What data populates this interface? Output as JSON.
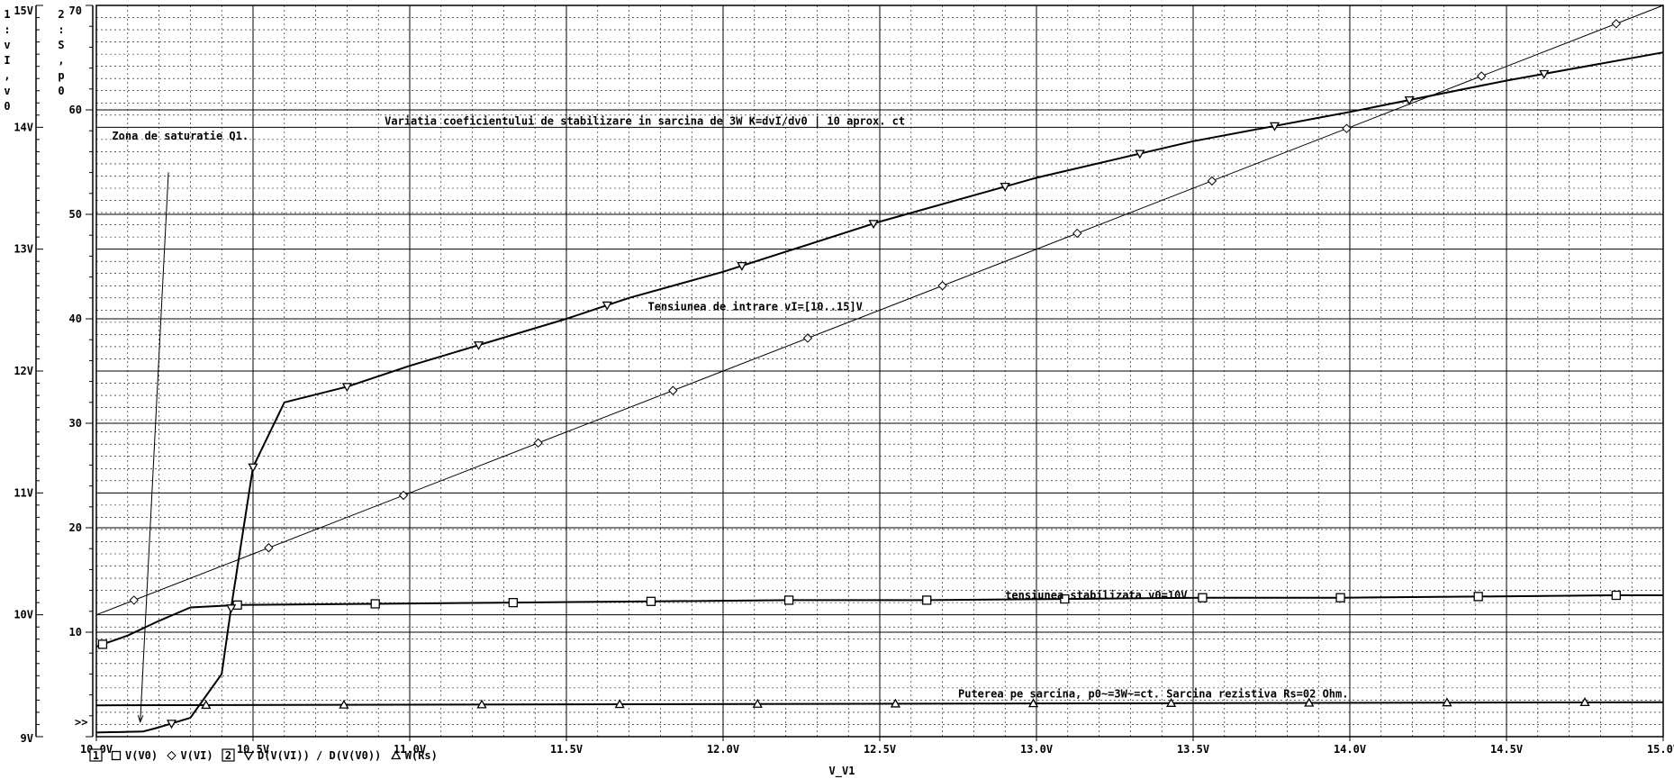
{
  "chart_data": {
    "type": "line",
    "xlabel": "V_V1",
    "x_range": [
      10.0,
      15.0
    ],
    "x_ticks": [
      "10.0V",
      "10.5V",
      "11.0V",
      "11.5V",
      "12.0V",
      "12.5V",
      "13.0V",
      "13.5V",
      "14.0V",
      "14.5V",
      "15.0V"
    ],
    "axis1": {
      "label_chars": [
        "1",
        ":",
        "v",
        "I",
        ",",
        "v",
        "0"
      ],
      "range": [
        9,
        15
      ],
      "ticks": [
        "9V",
        "10V",
        "11V",
        "12V",
        "13V",
        "14V",
        "15V"
      ]
    },
    "axis2": {
      "label_chars": [
        "2",
        ":",
        "S",
        ",",
        "p",
        "0"
      ],
      "range": [
        0,
        70
      ],
      "ticks": [
        "",
        "10",
        "20",
        "30",
        "40",
        "50",
        "60",
        "70"
      ]
    },
    "axis2_pointer": ">>",
    "grid": true,
    "legend": {
      "items": [
        {
          "type": "axis-box",
          "text": "1"
        },
        {
          "type": "marker",
          "marker": "square",
          "text": "V(V0)"
        },
        {
          "type": "marker",
          "marker": "diamond",
          "text": "V(VI)"
        },
        {
          "type": "axis-box",
          "text": "2"
        },
        {
          "type": "marker",
          "marker": "tri-down",
          "text": "D(V(VI)) / D(V(V0))"
        },
        {
          "type": "marker",
          "marker": "tri-up",
          "text": "W(Rs)"
        }
      ]
    },
    "series": [
      {
        "name": "V(V0)",
        "axis": 1,
        "marker": "square",
        "width": 2,
        "x": [
          10.0,
          10.1,
          10.2,
          10.3,
          10.45,
          10.89,
          11.33,
          11.77,
          12.21,
          12.65,
          13.09,
          13.53,
          13.97,
          14.41,
          14.85,
          15.0
        ],
        "y": [
          9.74,
          9.83,
          9.95,
          10.06,
          10.08,
          10.09,
          10.1,
          10.11,
          10.12,
          10.12,
          10.13,
          10.14,
          10.14,
          10.15,
          10.16,
          10.16
        ],
        "markers_x": [
          10.02,
          10.45,
          10.89,
          11.33,
          11.77,
          12.21,
          12.65,
          13.09,
          13.53,
          13.97,
          14.41,
          14.85
        ]
      },
      {
        "name": "V(VI)",
        "axis": 1,
        "marker": "diamond",
        "width": 1,
        "x": [
          10.0,
          15.0
        ],
        "y": [
          10.0,
          15.0
        ],
        "markers_x": [
          10.12,
          10.55,
          10.98,
          11.41,
          11.84,
          12.27,
          12.7,
          13.13,
          13.56,
          13.99,
          14.42,
          14.85
        ]
      },
      {
        "name": "D(V(VI)) / D(V(V0))",
        "axis": 2,
        "marker": "tri-down",
        "width": 2,
        "x": [
          10.0,
          10.15,
          10.2,
          10.3,
          10.4,
          10.43,
          10.5,
          10.6,
          10.8,
          11.0,
          11.2,
          11.5,
          11.7,
          12.0,
          12.5,
          13.0,
          13.5,
          14.0,
          14.5,
          15.0
        ],
        "y": [
          0.4,
          0.5,
          0.9,
          1.8,
          6.0,
          12.3,
          25.8,
          32.0,
          33.5,
          35.5,
          37.3,
          40.0,
          42.0,
          44.5,
          49.3,
          53.5,
          57.0,
          59.8,
          62.8,
          65.5
        ],
        "markers_x": [
          10.24,
          10.43,
          10.5,
          10.8,
          11.22,
          11.63,
          12.06,
          12.48,
          12.9,
          13.33,
          13.76,
          14.19,
          14.62
        ]
      },
      {
        "name": "W(Rs)",
        "axis": 2,
        "marker": "tri-up",
        "width": 2,
        "x": [
          10.0,
          15.0
        ],
        "y": [
          3.0,
          3.3
        ],
        "markers_x": [
          10.35,
          10.79,
          11.23,
          11.67,
          12.11,
          12.55,
          12.99,
          13.43,
          13.87,
          14.31,
          14.75
        ]
      }
    ],
    "annotations": [
      {
        "text": "Variatia coeficientului de stabilizare in sarcina de 3W K=dvI/dv0 | 10 aprox. ct",
        "x": 10.92,
        "y_axis1": 14.02
      },
      {
        "text": "Zona de saturatie Q1.",
        "x": 10.05,
        "y_axis1": 13.9
      },
      {
        "text": "Tensiunea de intrare vI=[10..15]V",
        "x": 11.76,
        "y_axis1": 12.5
      },
      {
        "text": "tensiunea stabilizata v0=10V",
        "x": 12.9,
        "y_axis1": 10.13
      },
      {
        "text": "Puterea pe sarcina, p0~=3W~=ct. Sarcina rezistiva Rs=02 Ohm.",
        "x": 12.75,
        "y_axis1": 9.32
      }
    ],
    "arrows": [
      {
        "from_x": 10.23,
        "from_y_axis1": 13.63,
        "to_x": 10.14,
        "to_y_axis1": 9.12
      }
    ]
  }
}
